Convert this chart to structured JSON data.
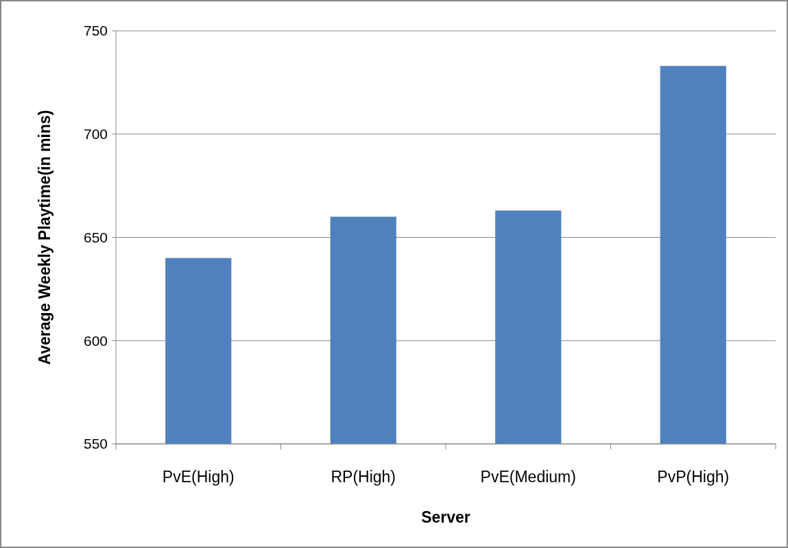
{
  "chart_data": {
    "type": "bar",
    "xlabel": "Server",
    "ylabel": "Average Weekly Playtime(in mins)",
    "categories": [
      "PvE(High)",
      "RP(High)",
      "PvE(Medium)",
      "PvP(High)"
    ],
    "values": [
      640,
      660,
      663,
      733
    ],
    "color": "#4f81bd",
    "ylim": [
      550,
      750
    ],
    "yticks": [
      550,
      600,
      650,
      700,
      750
    ],
    "grid": "y"
  }
}
